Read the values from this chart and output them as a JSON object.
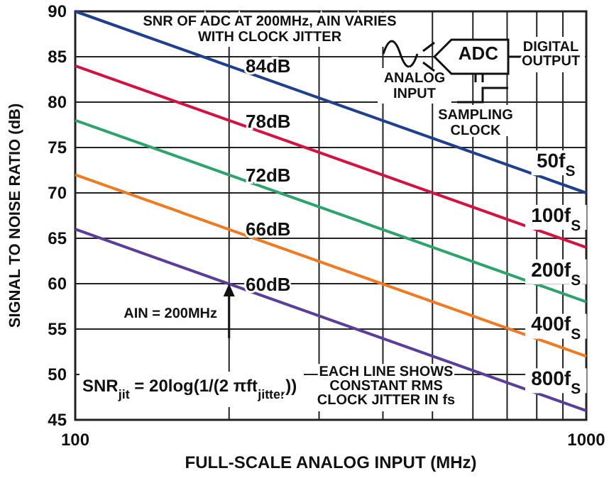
{
  "chart_data": {
    "type": "line",
    "xlabel": "FULL-SCALE ANALOG INPUT (MHz)",
    "ylabel": "SIGNAL TO NOISE RATIO (dB)",
    "log": "x",
    "grid": true,
    "legend": false,
    "marker": "none",
    "line_style": "solid",
    "xlim": [
      100,
      1000
    ],
    "ylim": [
      45,
      90
    ],
    "xticks": [
      100,
      {
        "value": 200,
        "label": null
      },
      {
        "value": 300,
        "label": null
      },
      {
        "value": 400,
        "label": null
      },
      {
        "value": 500,
        "label": null
      },
      {
        "value": 600,
        "label": null
      },
      {
        "value": 700,
        "label": null
      },
      {
        "value": 800,
        "label": null
      },
      {
        "value": 900,
        "label": null
      },
      1000
    ],
    "yticks": [
      45,
      50,
      55,
      60,
      65,
      70,
      75,
      80,
      85,
      90
    ],
    "x": [
      100,
      1000
    ],
    "series": [
      {
        "name": "50f$_{S}$",
        "color": "#1f3f8f",
        "values": [
          90,
          70
        ]
      },
      {
        "name": "100f$_{S}$",
        "color": "#d4123f",
        "values": [
          84,
          64
        ]
      },
      {
        "name": "200f$_{S}$",
        "color": "#2ea36b",
        "values": [
          78,
          58
        ]
      },
      {
        "name": "400f$_{S}$",
        "color": "#f07a22",
        "values": [
          72,
          52
        ]
      },
      {
        "name": "800f$_{S}$",
        "color": "#5b3d9a",
        "values": [
          66,
          46
        ]
      }
    ],
    "annotations": [
      "SNR OF ADC AT 200MHz, AIN VARIES",
      "WITH CLOCK JITTER",
      "ADC",
      "ANALOG",
      "INPUT",
      "DIGITAL",
      "OUTPUT",
      "SAMPLING",
      "CLOCK",
      "AIN = 200MHz",
      "SNR$_{jit}$ = 20log(1/(2 πft$_{jitter}$))",
      "EACH LINE SHOWS",
      "CONSTANT RMS",
      "CLOCK JITTER IN fs",
      "84dB",
      "78dB",
      "72dB",
      "66dB",
      "60dB"
    ]
  }
}
